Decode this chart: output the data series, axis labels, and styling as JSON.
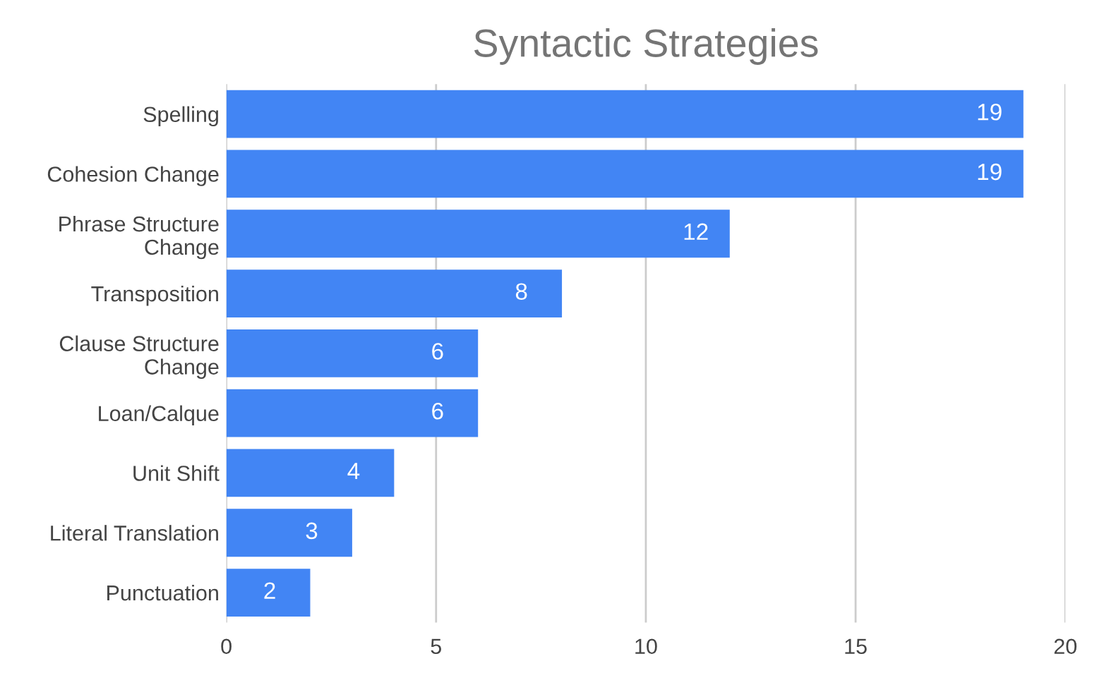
{
  "chart_data": {
    "type": "bar",
    "orientation": "horizontal",
    "title": "Syntactic Strategies",
    "categories": [
      "Spelling",
      "Cohesion Change",
      "Phrase Structure\nChange",
      "Transposition",
      "Clause Structure\nChange",
      "Loan/Calque",
      "Unit Shift",
      "Literal Translation",
      "Punctuation"
    ],
    "values": [
      19,
      19,
      12,
      8,
      6,
      6,
      4,
      3,
      2
    ],
    "color": "#4285f4",
    "xlim": [
      0,
      20
    ],
    "xticks": [
      0,
      5,
      10,
      15,
      20
    ],
    "grid": "x",
    "data_labels": true
  }
}
